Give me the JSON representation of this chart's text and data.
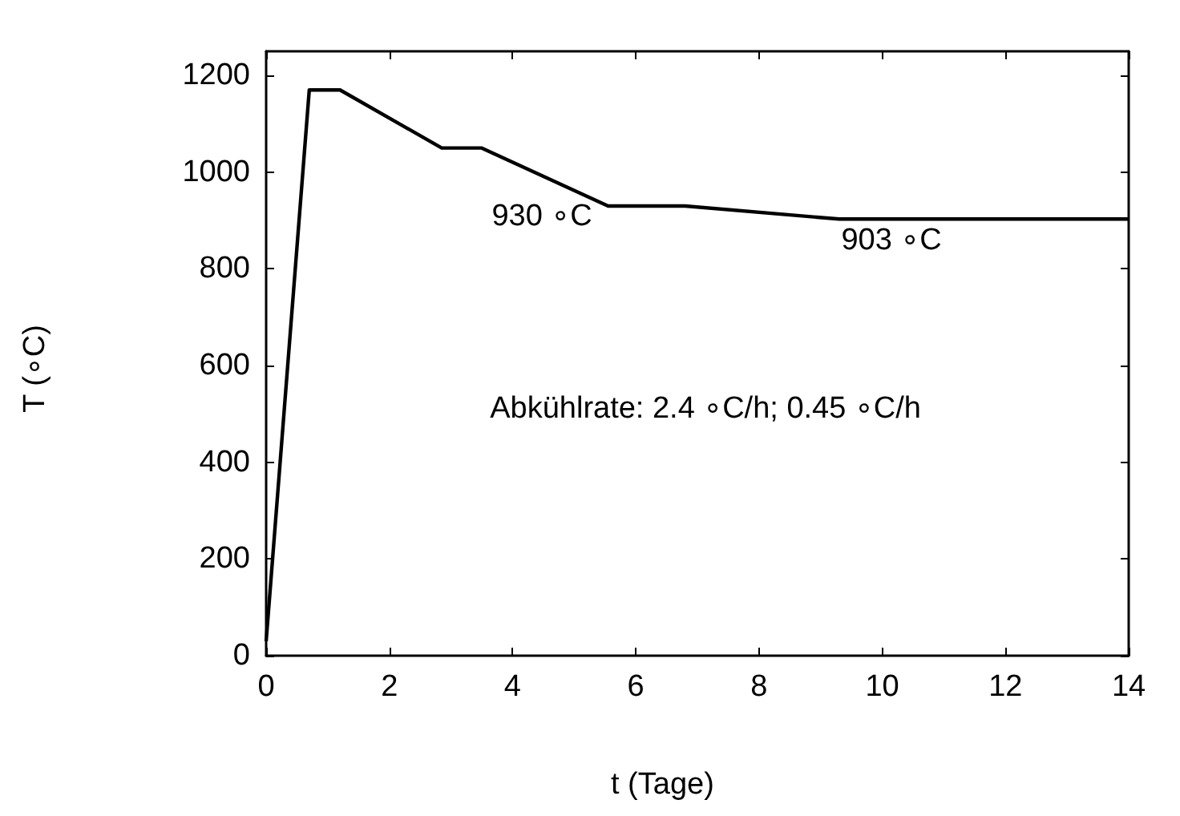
{
  "chart_data": {
    "type": "line",
    "xlabel": "t (Tage)",
    "ylabel": "T (∘C)",
    "x": [
      0,
      0.7,
      1.2,
      2.85,
      3.5,
      5.55,
      6.8,
      9.3,
      14
    ],
    "series": [
      {
        "color": "#000000",
        "values": [
          30,
          1170,
          1170,
          1050,
          1050,
          930,
          930,
          903,
          903
        ]
      }
    ],
    "xlim": [
      0,
      14
    ],
    "xticks": [
      0,
      2,
      4,
      6,
      8,
      10,
      12,
      14
    ],
    "ylim": [
      0,
      1250
    ],
    "yticks": [
      0,
      200,
      400,
      600,
      800,
      1000,
      1200
    ],
    "annotations": [
      "930 ∘C",
      "903 ∘C",
      "Abkühlrate: 2.4 ∘C/h; 0.45 ∘C/h"
    ],
    "grid": false,
    "marker": "none",
    "line_style": "solid"
  }
}
